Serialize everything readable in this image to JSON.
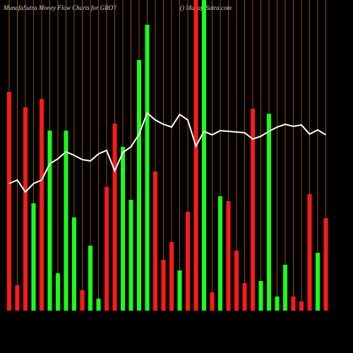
{
  "chart_data": {
    "type": "bar",
    "title": "MunafaSutra  Money Flow  Charts for GROY",
    "subtitle": "() MunafaSutra.com",
    "ylim": [
      0,
      440
    ],
    "grid": true,
    "grid_color": "#b8660b",
    "bars": {
      "values": [
        310,
        36,
        288,
        152,
        300,
        255,
        53,
        255,
        132,
        29,
        92,
        17,
        175,
        265,
        232,
        157,
        355,
        405,
        197,
        72,
        97,
        57,
        140,
        440,
        440,
        26,
        162,
        155,
        85,
        39,
        286,
        42,
        279,
        20,
        65,
        20,
        13,
        165,
        82,
        131
      ],
      "colors": [
        "#ff1a1a",
        "#ff1a1a",
        "#ff1a1a",
        "#1aff1a",
        "#ff1a1a",
        "#1aff1a",
        "#1aff1a",
        "#1aff1a",
        "#1aff1a",
        "#ff1a1a",
        "#1aff1a",
        "#1aff1a",
        "#ff1a1a",
        "#ff1a1a",
        "#1aff1a",
        "#1aff1a",
        "#1aff1a",
        "#1aff1a",
        "#ff1a1a",
        "#ff1a1a",
        "#ff1a1a",
        "#1aff1a",
        "#ff1a1a",
        "#ff1a1a",
        "#1aff1a",
        "#ff1a1a",
        "#1aff1a",
        "#ff1a1a",
        "#ff1a1a",
        "#ff1a1a",
        "#ff1a1a",
        "#1aff1a",
        "#1aff1a",
        "#1aff1a",
        "#1aff1a",
        "#ff1a1a",
        "#ff1a1a",
        "#ff1a1a",
        "#1aff1a",
        "#ff1a1a"
      ]
    },
    "line": {
      "color": "#ffffff",
      "values": [
        180,
        185,
        168,
        180,
        185,
        208,
        215,
        225,
        220,
        214,
        212,
        222,
        227,
        198,
        224,
        232,
        250,
        280,
        270,
        264,
        260,
        278,
        270,
        233,
        254,
        249,
        255,
        254,
        253,
        252,
        243,
        247,
        254,
        260,
        264,
        261,
        263,
        250,
        256,
        249
      ]
    }
  }
}
